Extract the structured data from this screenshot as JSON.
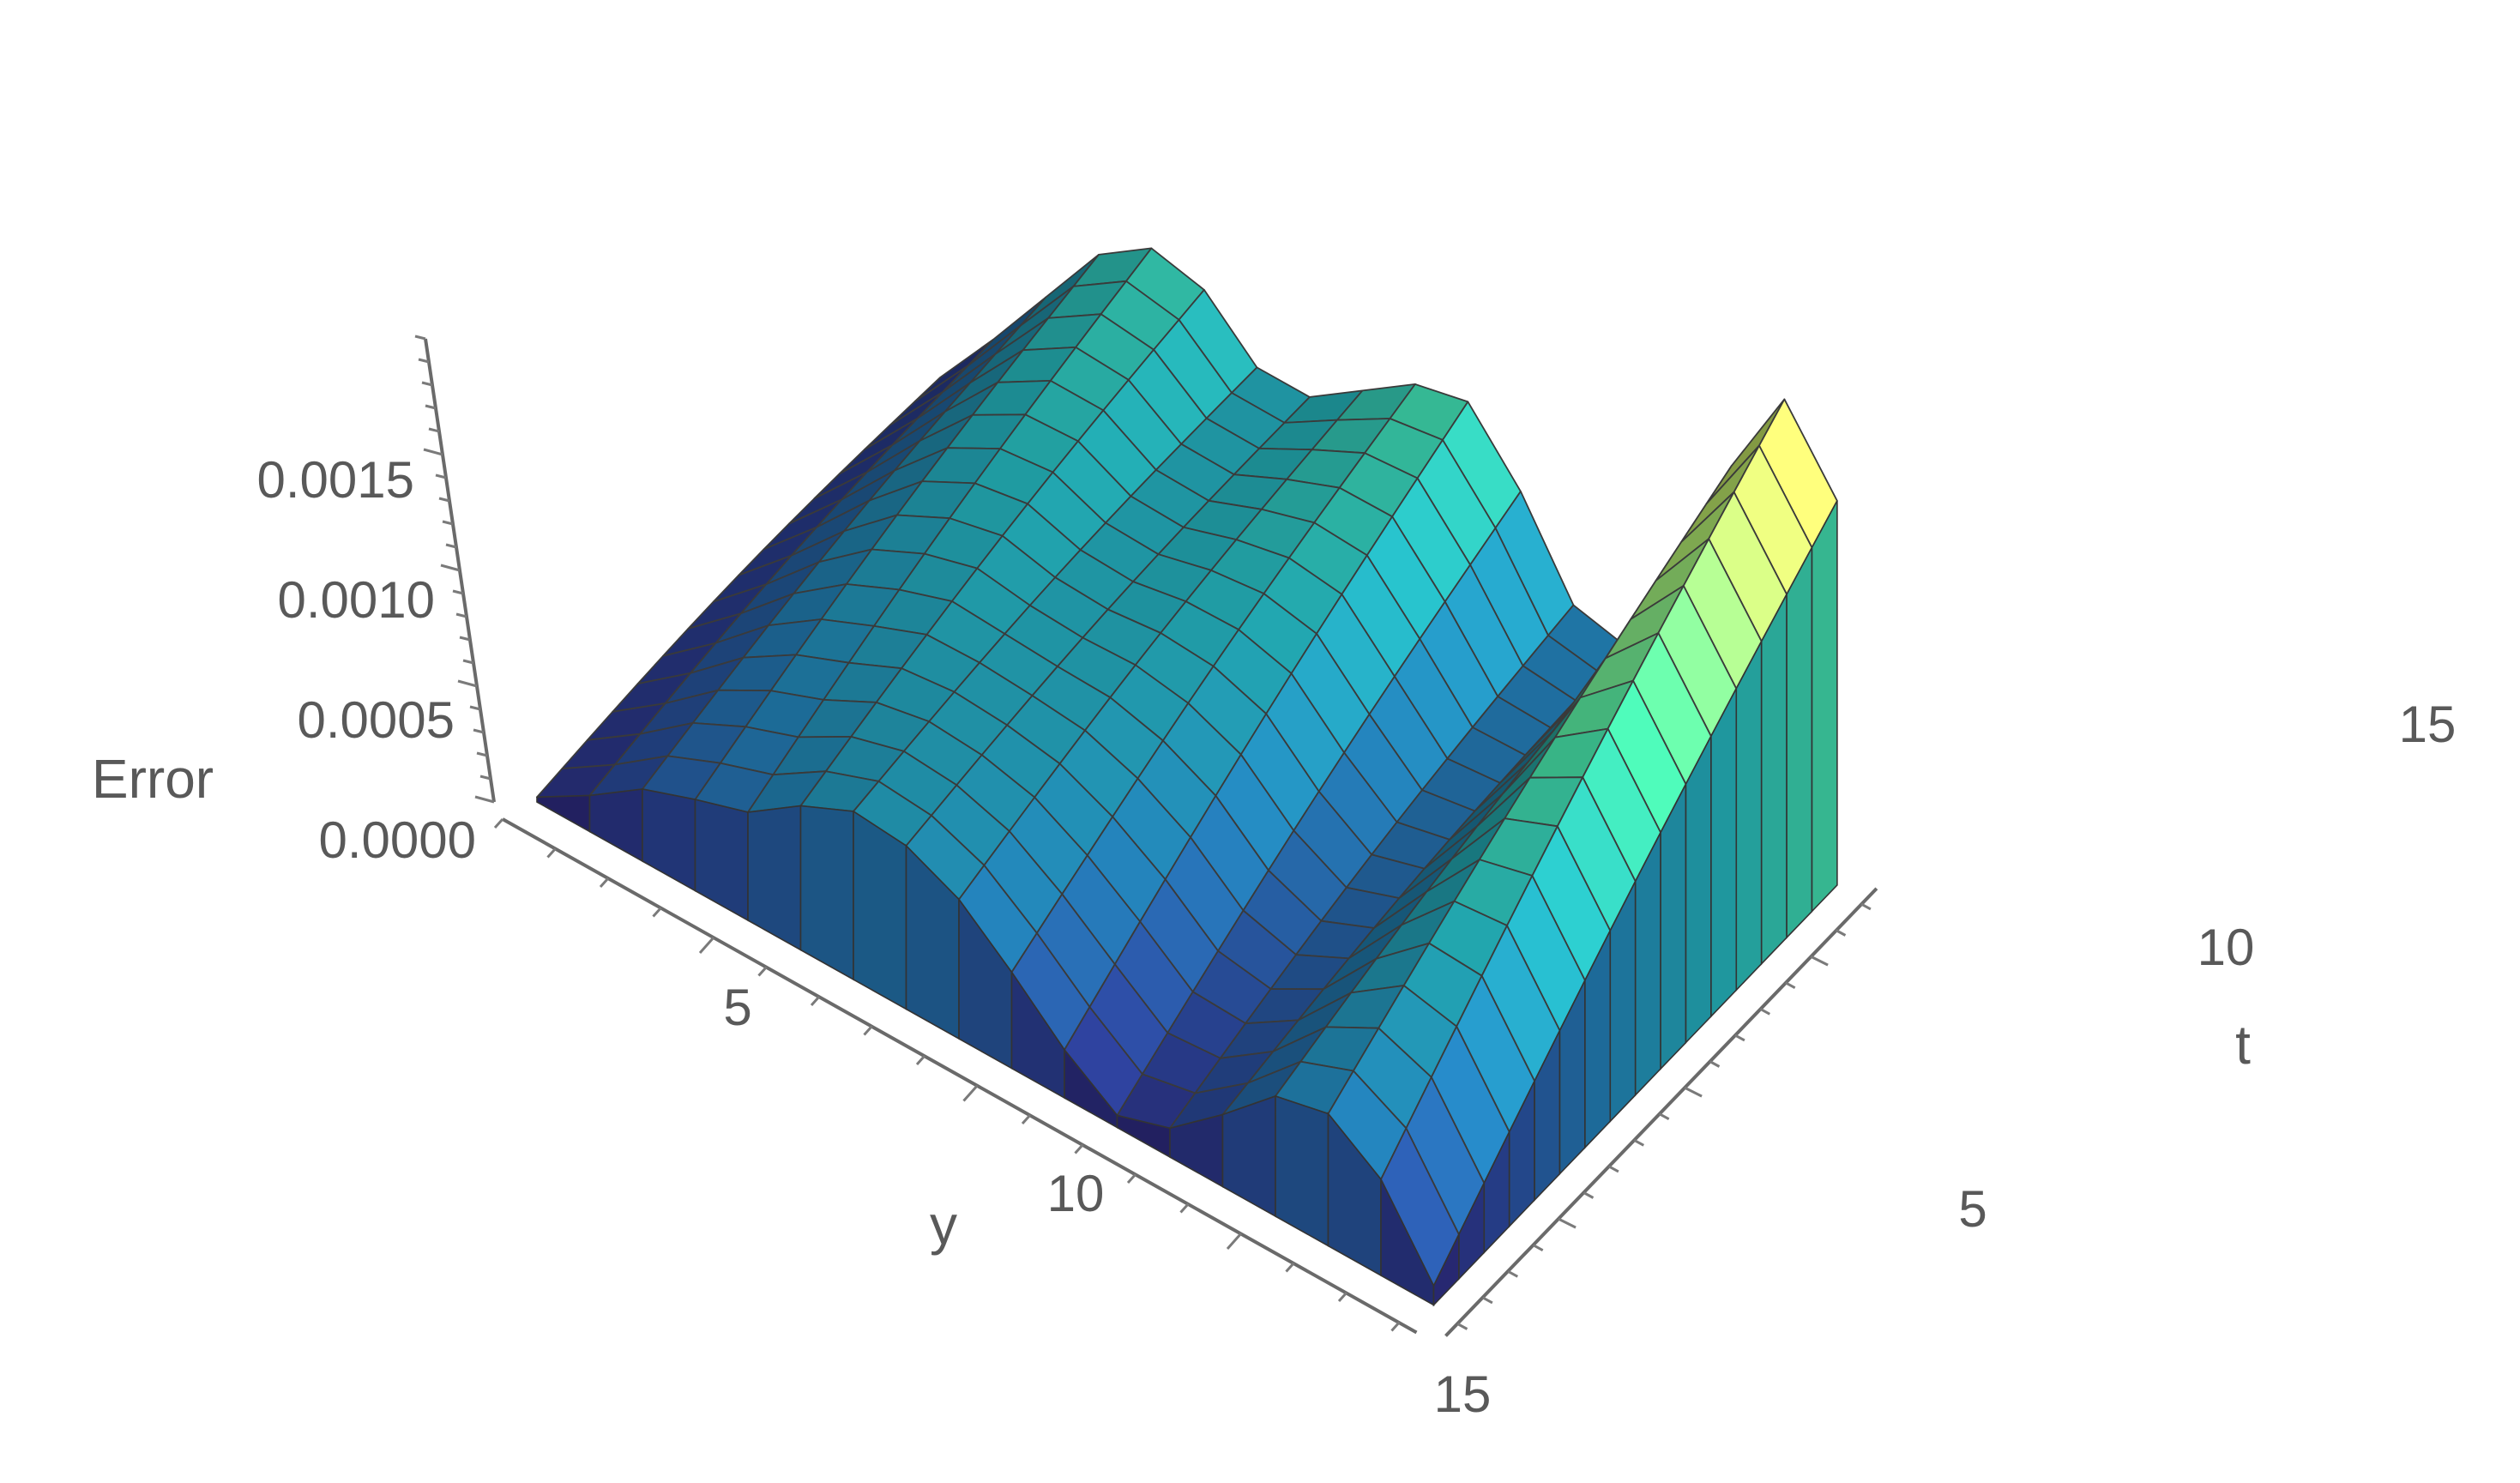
{
  "chart_data": {
    "type": "surface3d",
    "x_axis": {
      "label": "y",
      "range": [
        1,
        18
      ],
      "ticks": [
        "5",
        "10",
        "15"
      ]
    },
    "y_axis": {
      "label": "t",
      "range": [
        1,
        17
      ],
      "ticks": [
        "5",
        "10",
        "15"
      ]
    },
    "z_axis": {
      "label": "Error",
      "range": [
        0,
        0.0019
      ],
      "ticks": [
        "0.0000",
        "0.0005",
        "0.0010",
        "0.0015"
      ]
    },
    "colormap": [
      "#2c1160",
      "#2a3f92",
      "#2079ab",
      "#22a9b0",
      "#45d69a",
      "#bdf36f",
      "#f4f260"
    ],
    "z_by_y_at_t1": [
      2e-05,
      0.00015,
      0.0003,
      0.00038,
      0.00045,
      0.0006,
      0.0007,
      0.00068,
      0.00058,
      0.0004,
      0.0002,
      5e-05,
      0.00012,
      0.0003,
      0.0005,
      0.00055,
      0.0004,
      8e-05
    ],
    "z_by_y_at_t17": [
      2e-05,
      0.0003,
      0.0006,
      0.0009,
      0.00105,
      0.001,
      0.0008,
      0.0008,
      0.00095,
      0.0011,
      0.00115,
      0.0009,
      0.00055,
      0.0005,
      0.0009,
      0.0015,
      0.0019,
      0.0016
    ]
  }
}
